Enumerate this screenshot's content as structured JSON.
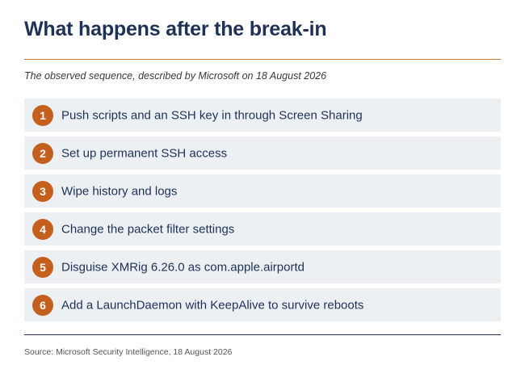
{
  "header": {
    "title": "What happens after the break-in",
    "subtitle": "The observed sequence, described by Microsoft on 18 August 2026"
  },
  "steps": [
    {
      "number": "1",
      "text": "Push scripts and an SSH key in through Screen Sharing"
    },
    {
      "number": "2",
      "text": "Set up permanent SSH access"
    },
    {
      "number": "3",
      "text": "Wipe history and logs"
    },
    {
      "number": "4",
      "text": "Change the packet filter settings"
    },
    {
      "number": "5",
      "text": "Disguise XMRig 6.26.0 as com.apple.airportd"
    },
    {
      "number": "6",
      "text": "Add a LaunchDaemon with KeepAlive to survive reboots"
    }
  ],
  "footer": {
    "source": "Source: Microsoft Security Intelligence, 18 August 2026"
  },
  "colors": {
    "title": "#1f3157",
    "accent": "#c55f1d",
    "rule_top": "#c8763a",
    "row_background": "#ecf0f3"
  }
}
